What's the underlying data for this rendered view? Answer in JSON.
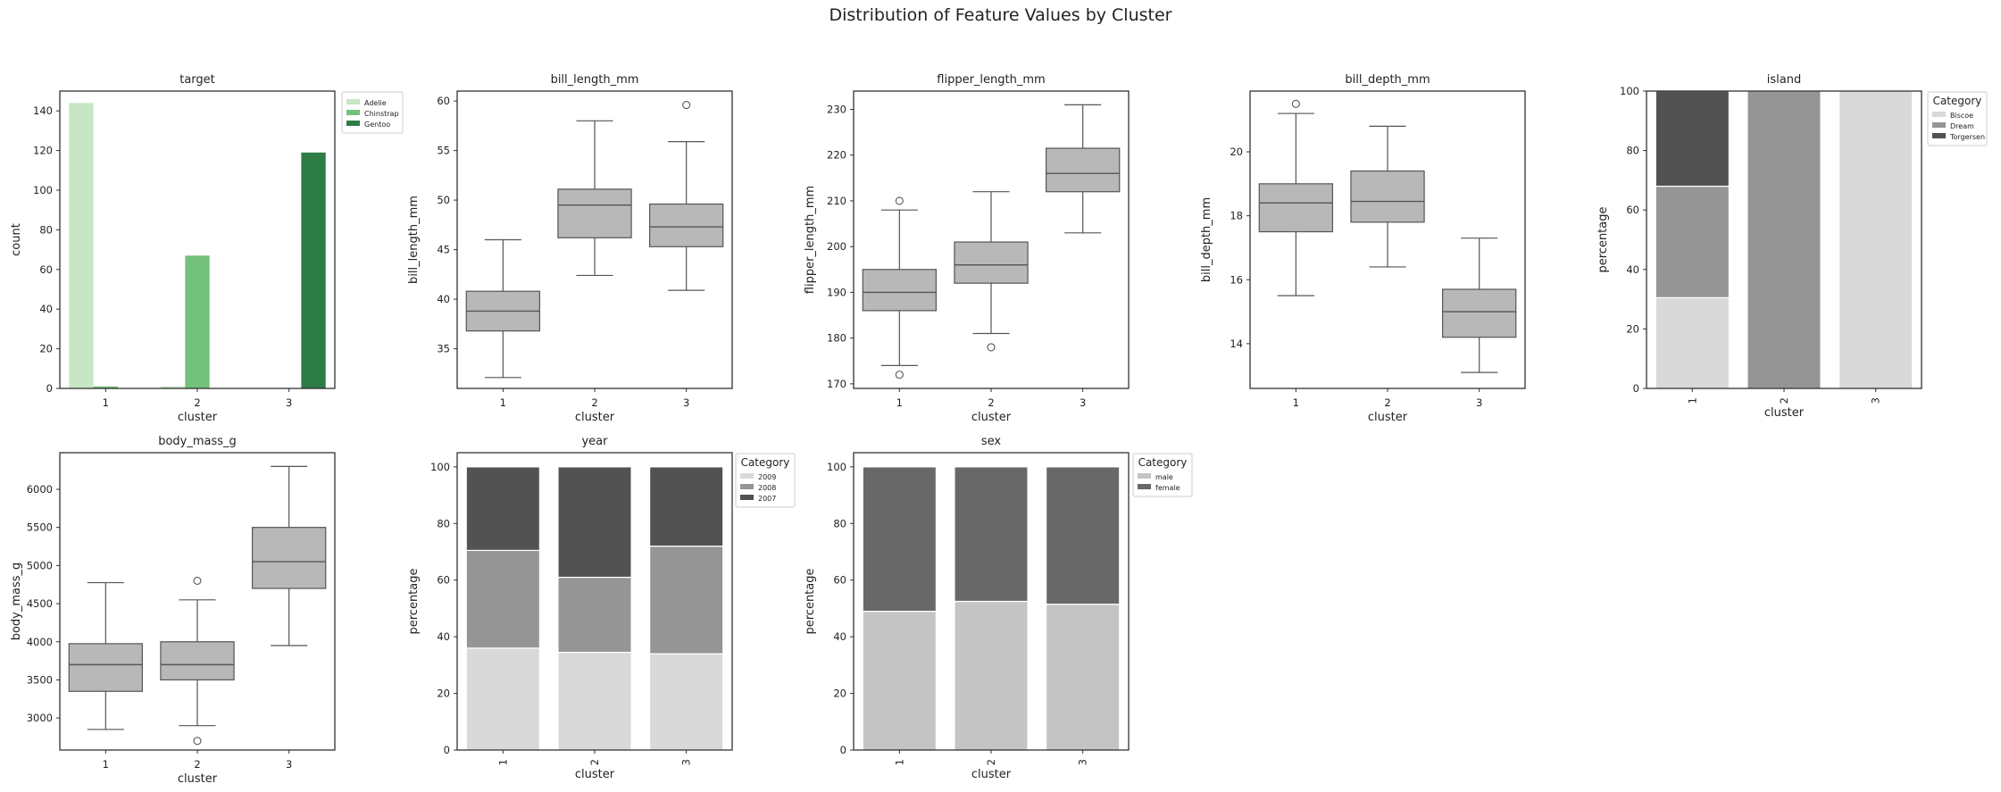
{
  "figure": {
    "title": "Distribution of Feature Values by Cluster"
  },
  "chart_data": [
    {
      "type": "bar",
      "title": "target",
      "xlabel": "cluster",
      "ylabel": "count",
      "categories": [
        "1",
        "2",
        "3"
      ],
      "ylim": [
        0,
        150
      ],
      "yticks": [
        0,
        20,
        40,
        60,
        80,
        100,
        120,
        140
      ],
      "legend": {
        "title": "",
        "placement": "outside-right"
      },
      "series": [
        {
          "name": "Adelie",
          "color": "#c7e6c4",
          "values": [
            144,
            1,
            0
          ]
        },
        {
          "name": "Chinstrap",
          "color": "#74c17b",
          "values": [
            1,
            67,
            0
          ]
        },
        {
          "name": "Gentoo",
          "color": "#2e7d47",
          "values": [
            0,
            0,
            119
          ]
        }
      ]
    },
    {
      "type": "box",
      "title": "bill_length_mm",
      "xlabel": "cluster",
      "ylabel": "bill_length_mm",
      "categories": [
        "1",
        "2",
        "3"
      ],
      "ylim": [
        31,
        61
      ],
      "yticks": [
        35,
        40,
        45,
        50,
        55,
        60
      ],
      "color": "#b8b8b8",
      "boxes": [
        {
          "whisker_low": 32.1,
          "q1": 36.8,
          "median": 38.8,
          "q3": 40.8,
          "whisker_high": 46.0,
          "outliers": []
        },
        {
          "whisker_low": 42.4,
          "q1": 46.2,
          "median": 49.5,
          "q3": 51.1,
          "whisker_high": 58.0,
          "outliers": []
        },
        {
          "whisker_low": 40.9,
          "q1": 45.3,
          "median": 47.3,
          "q3": 49.6,
          "whisker_high": 55.9,
          "outliers": [
            59.6
          ]
        }
      ]
    },
    {
      "type": "box",
      "title": "flipper_length_mm",
      "xlabel": "cluster",
      "ylabel": "flipper_length_mm",
      "categories": [
        "1",
        "2",
        "3"
      ],
      "ylim": [
        169,
        234
      ],
      "yticks": [
        170,
        180,
        190,
        200,
        210,
        220,
        230
      ],
      "color": "#b8b8b8",
      "boxes": [
        {
          "whisker_low": 174,
          "q1": 186,
          "median": 190,
          "q3": 195,
          "whisker_high": 208,
          "outliers": [
            210,
            172
          ]
        },
        {
          "whisker_low": 181,
          "q1": 192,
          "median": 196,
          "q3": 201,
          "whisker_high": 212,
          "outliers": [
            178
          ]
        },
        {
          "whisker_low": 203,
          "q1": 212,
          "median": 216,
          "q3": 221.5,
          "whisker_high": 231,
          "outliers": []
        }
      ]
    },
    {
      "type": "box",
      "title": "bill_depth_mm",
      "xlabel": "cluster",
      "ylabel": "bill_depth_mm",
      "categories": [
        "1",
        "2",
        "3"
      ],
      "ylim": [
        12.6,
        21.9
      ],
      "yticks": [
        14,
        16,
        18,
        20
      ],
      "color": "#b8b8b8",
      "boxes": [
        {
          "whisker_low": 15.5,
          "q1": 17.5,
          "median": 18.4,
          "q3": 19.0,
          "whisker_high": 21.2,
          "outliers": [
            21.5
          ]
        },
        {
          "whisker_low": 16.4,
          "q1": 17.8,
          "median": 18.45,
          "q3": 19.4,
          "whisker_high": 20.8,
          "outliers": []
        },
        {
          "whisker_low": 13.1,
          "q1": 14.2,
          "median": 15.0,
          "q3": 15.7,
          "whisker_high": 17.3,
          "outliers": []
        }
      ]
    },
    {
      "type": "bar",
      "stacked": true,
      "title": "island",
      "xlabel": "cluster",
      "ylabel": "percentage",
      "categories": [
        "1",
        "2",
        "3"
      ],
      "ylim": [
        0,
        100
      ],
      "yticks": [
        0,
        20,
        40,
        60,
        80,
        100
      ],
      "legend": {
        "title": "Category",
        "placement": "outside-right"
      },
      "series": [
        {
          "name": "Biscoe",
          "color": "#d9d9d9",
          "values": [
            30.5,
            0,
            100
          ]
        },
        {
          "name": "Dream",
          "color": "#959595",
          "values": [
            37.5,
            100,
            0
          ]
        },
        {
          "name": "Torgersen",
          "color": "#525252",
          "values": [
            32,
            0,
            0
          ]
        }
      ]
    },
    {
      "type": "box",
      "title": "body_mass_g",
      "xlabel": "cluster",
      "ylabel": "body_mass_g",
      "categories": [
        "1",
        "2",
        "3"
      ],
      "ylim": [
        2580,
        6480
      ],
      "yticks": [
        3000,
        3500,
        4000,
        4500,
        5000,
        5500,
        6000
      ],
      "color": "#b8b8b8",
      "boxes": [
        {
          "whisker_low": 2850,
          "q1": 3350,
          "median": 3700,
          "q3": 3975,
          "whisker_high": 4775,
          "outliers": []
        },
        {
          "whisker_low": 2900,
          "q1": 3500,
          "median": 3700,
          "q3": 4000,
          "whisker_high": 4550,
          "outliers": [
            4800,
            2700
          ]
        },
        {
          "whisker_low": 3950,
          "q1": 4700,
          "median": 5050,
          "q3": 5500,
          "whisker_high": 6300,
          "outliers": []
        }
      ]
    },
    {
      "type": "bar",
      "stacked": true,
      "title": "year",
      "xlabel": "cluster",
      "ylabel": "percentage",
      "categories": [
        "1",
        "2",
        "3"
      ],
      "ylim": [
        0,
        105
      ],
      "yticks": [
        0,
        20,
        40,
        60,
        80,
        100
      ],
      "legend": {
        "title": "Category",
        "placement": "outside-right"
      },
      "series": [
        {
          "name": "2009",
          "color": "#d9d9d9",
          "values": [
            36,
            34.5,
            34
          ]
        },
        {
          "name": "2008",
          "color": "#959595",
          "values": [
            34.5,
            26.5,
            38
          ]
        },
        {
          "name": "2007",
          "color": "#525252",
          "values": [
            29.5,
            39,
            28
          ]
        }
      ]
    },
    {
      "type": "bar",
      "stacked": true,
      "title": "sex",
      "xlabel": "cluster",
      "ylabel": "percentage",
      "categories": [
        "1",
        "2",
        "3"
      ],
      "ylim": [
        0,
        105
      ],
      "yticks": [
        0,
        20,
        40,
        60,
        80,
        100
      ],
      "legend": {
        "title": "Category",
        "placement": "outside-right"
      },
      "series": [
        {
          "name": "male",
          "color": "#c4c4c4",
          "values": [
            49,
            52.5,
            51.5
          ]
        },
        {
          "name": "female",
          "color": "#686868",
          "values": [
            51,
            47.5,
            48.5
          ]
        }
      ]
    }
  ]
}
